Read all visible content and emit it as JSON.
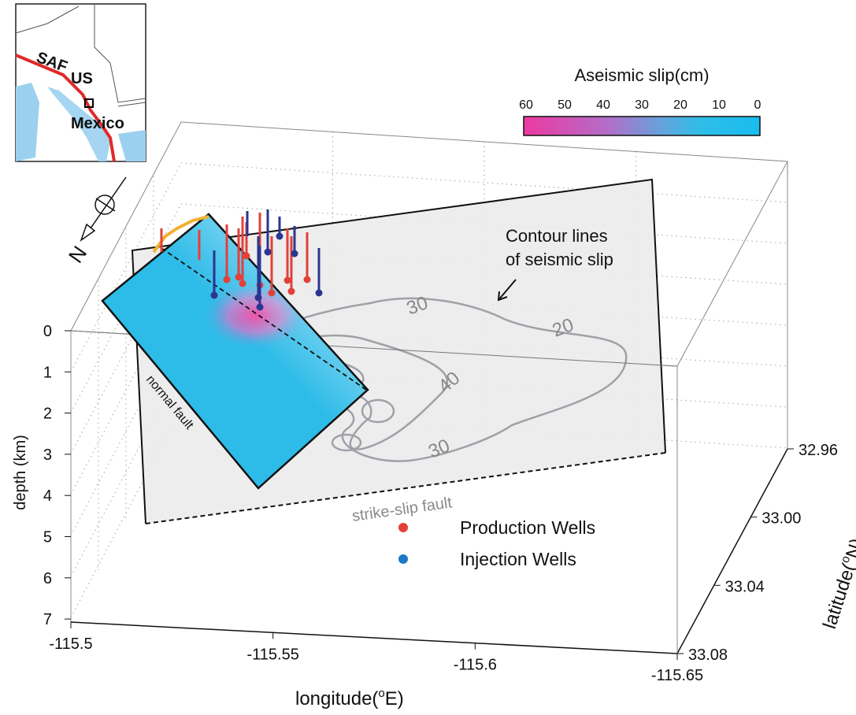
{
  "inset": {
    "labels": [
      "SAF",
      "US",
      "Mexico"
    ]
  },
  "colorbar": {
    "title": "Aseismic slip(cm)",
    "ticks": [
      "60",
      "50",
      "40",
      "30",
      "20",
      "10",
      "0"
    ]
  },
  "annotations": {
    "contour_note": [
      "Contour lines",
      "of seismic slip"
    ],
    "normal_fault": "normal fault",
    "strike_slip_fault": "strike-slip fault",
    "compass": "N"
  },
  "contour_labels": [
    "30",
    "20",
    "40",
    "30"
  ],
  "legend": [
    {
      "label": "Production Wells",
      "color": "#e2403a"
    },
    {
      "label": "Injection Wells",
      "color": "#1f78c8"
    }
  ],
  "axes": {
    "depth": {
      "title": "depth (km)",
      "ticks": [
        "0",
        "1",
        "2",
        "3",
        "4",
        "5",
        "6",
        "7"
      ]
    },
    "longitude": {
      "title": [
        "longitude(",
        "o",
        "E)"
      ],
      "ticks": [
        "-115.5",
        "-115.55",
        "-115.6",
        "-115.65"
      ]
    },
    "latitude": {
      "title": [
        "latitude(",
        "o",
        "N)"
      ],
      "ticks": [
        "32.96",
        "33.00",
        "33.04",
        "33.08"
      ]
    }
  }
}
